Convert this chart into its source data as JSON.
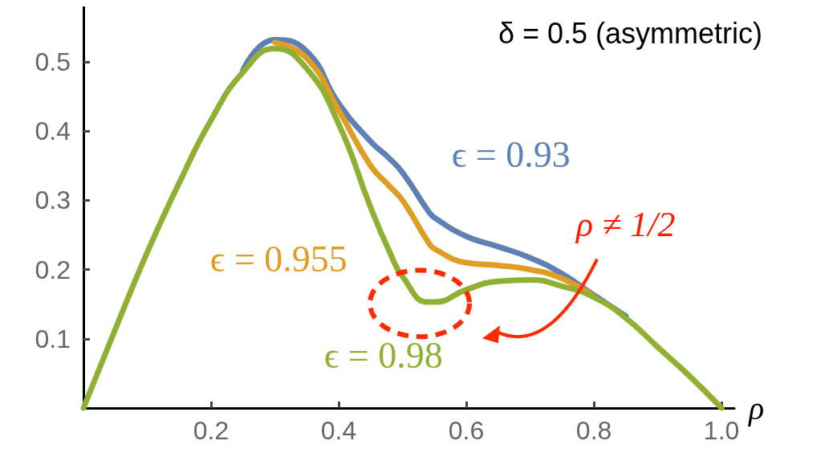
{
  "chart_data": {
    "type": "line",
    "title": "δ = 0.5 (asymmetric)",
    "xlabel": "ρ",
    "x": [
      0,
      0.05,
      0.1,
      0.15,
      0.2,
      0.25,
      0.3,
      0.35,
      0.4,
      0.45,
      0.48,
      0.5,
      0.54,
      0.55,
      0.6,
      0.65,
      0.7,
      0.75,
      0.8,
      0.85,
      0.9,
      0.95,
      1.0
    ],
    "series": [
      {
        "name": "ϵ = 0.93",
        "color": "#5e81b5",
        "values": [
          null,
          null,
          null,
          null,
          null,
          0.488,
          0.532,
          0.515,
          0.44,
          0.385,
          0.36,
          0.34,
          0.285,
          0.275,
          0.248,
          0.233,
          0.217,
          0.194,
          0.163,
          0.133,
          null,
          null,
          null
        ]
      },
      {
        "name": "ϵ = 0.955",
        "color": "#e19c24",
        "values": [
          null,
          null,
          null,
          null,
          null,
          null,
          0.528,
          0.505,
          0.43,
          0.35,
          0.32,
          0.3,
          0.24,
          0.23,
          0.21,
          0.206,
          0.2,
          0.187,
          0.161,
          null,
          null,
          null,
          null
        ]
      },
      {
        "name": "ϵ = 0.98",
        "color": "#8fb032",
        "values": [
          0,
          0.114,
          0.225,
          0.325,
          0.416,
          0.485,
          0.519,
          0.49,
          0.41,
          0.29,
          0.225,
          0.19,
          0.153,
          0.153,
          0.171,
          0.183,
          0.185,
          0.176,
          0.16,
          0.13,
          0.088,
          0.046,
          0
        ]
      }
    ],
    "xlim": [
      0,
      1.02
    ],
    "ylim": [
      0,
      0.58
    ],
    "xticks": [
      0.2,
      0.4,
      0.6,
      0.8,
      {
        "value": 1,
        "label": "1.0"
      }
    ],
    "yticks": [
      0.1,
      0.2,
      0.3,
      0.4,
      0.5
    ],
    "annotations": [
      "ρ ≠ 1/2"
    ],
    "grid": false,
    "legend": false,
    "marker": "none",
    "line_style": "solid"
  }
}
